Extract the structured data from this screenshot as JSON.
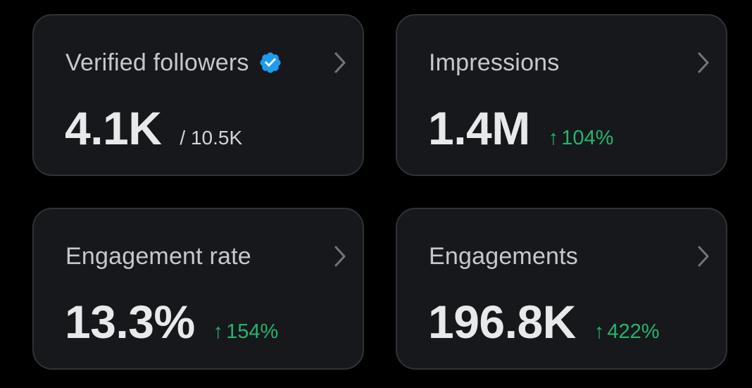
{
  "cards": [
    {
      "title": "Verified followers",
      "value": "4.1K",
      "sub": "/ 10.5K",
      "change": null,
      "verified": true
    },
    {
      "title": "Impressions",
      "value": "1.4M",
      "sub": null,
      "change_arrow": "↑",
      "change": "104%"
    },
    {
      "title": "Engagement rate",
      "value": "13.3%",
      "sub": null,
      "change_arrow": "↑",
      "change": "154%"
    },
    {
      "title": "Engagements",
      "value": "196.8K",
      "sub": null,
      "change_arrow": "↑",
      "change": "422%"
    }
  ],
  "icons": {
    "verified": "verified-badge-icon",
    "chevron": "chevron-right-icon",
    "arrow": "arrow-up-icon"
  },
  "colors": {
    "background": "#000000",
    "card": "#16181c",
    "border": "#2f3336",
    "title": "#c5c9ce",
    "value": "#e7e9ea",
    "positive": "#26b46a",
    "verified": "#1d9bf0",
    "chevron": "#71767b"
  }
}
